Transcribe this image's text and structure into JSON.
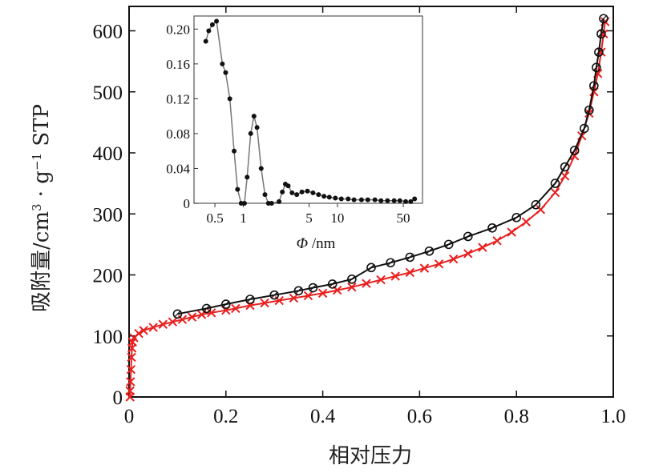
{
  "chart_data": [
    {
      "type": "line",
      "title": "",
      "xlabel": "相对压力",
      "ylabel": "吸附量/cm³·g⁻¹ STP",
      "ylabel_parts": {
        "main": "吸附量/cm",
        "sup1": "3",
        "dot": " · g",
        "sup2": "−1",
        "tail": " STP"
      },
      "xlim": [
        0,
        1.0
      ],
      "ylim": [
        0,
        640
      ],
      "x_ticks": [
        0,
        0.2,
        0.4,
        0.6,
        0.8,
        1.0
      ],
      "x_tick_labels": [
        "0",
        "0.2",
        "0.4",
        "0.6",
        "0.8",
        "1.0"
      ],
      "y_ticks": [
        0,
        100,
        200,
        300,
        400,
        500,
        600
      ],
      "y_tick_labels": [
        "0",
        "100",
        "200",
        "300",
        "400",
        "500",
        "600"
      ],
      "grid": false,
      "series": [
        {
          "color": "#e8201f",
          "marker": "x",
          "points": [
            [
              0.002,
              0
            ],
            [
              0.002,
              10
            ],
            [
              0.003,
              25
            ],
            [
              0.004,
              45
            ],
            [
              0.005,
              65
            ],
            [
              0.006,
              80
            ],
            [
              0.007,
              90
            ],
            [
              0.01,
              97
            ],
            [
              0.02,
              104
            ],
            [
              0.03,
              109
            ],
            [
              0.05,
              114
            ],
            [
              0.07,
              119
            ],
            [
              0.09,
              123
            ],
            [
              0.11,
              127
            ],
            [
              0.13,
              131
            ],
            [
              0.15,
              135
            ],
            [
              0.17,
              138
            ],
            [
              0.2,
              142
            ],
            [
              0.22,
              145
            ],
            [
              0.25,
              150
            ],
            [
              0.28,
              154
            ],
            [
              0.31,
              158
            ],
            [
              0.34,
              162
            ],
            [
              0.37,
              166
            ],
            [
              0.4,
              170
            ],
            [
              0.43,
              175
            ],
            [
              0.46,
              180
            ],
            [
              0.49,
              186
            ],
            [
              0.52,
              192
            ],
            [
              0.55,
              198
            ],
            [
              0.58,
              204
            ],
            [
              0.61,
              211
            ],
            [
              0.64,
              218
            ],
            [
              0.67,
              226
            ],
            [
              0.7,
              235
            ],
            [
              0.73,
              245
            ],
            [
              0.76,
              256
            ],
            [
              0.79,
              270
            ],
            [
              0.82,
              287
            ],
            [
              0.85,
              307
            ],
            [
              0.88,
              335
            ],
            [
              0.9,
              362
            ],
            [
              0.92,
              395
            ],
            [
              0.935,
              428
            ],
            [
              0.95,
              465
            ],
            [
              0.96,
              500
            ],
            [
              0.968,
              530
            ],
            [
              0.975,
              565
            ],
            [
              0.98,
              595
            ],
            [
              0.983,
              615
            ]
          ]
        },
        {
          "color": "#111111",
          "marker": "o",
          "points": [
            [
              0.1,
              136
            ],
            [
              0.16,
              145
            ],
            [
              0.2,
              152
            ],
            [
              0.25,
              160
            ],
            [
              0.3,
              167
            ],
            [
              0.35,
              174
            ],
            [
              0.38,
              179
            ],
            [
              0.42,
              185
            ],
            [
              0.46,
              193
            ],
            [
              0.5,
              212
            ],
            [
              0.54,
              220
            ],
            [
              0.58,
              229
            ],
            [
              0.62,
              239
            ],
            [
              0.66,
              250
            ],
            [
              0.7,
              263
            ],
            [
              0.75,
              277
            ],
            [
              0.8,
              294
            ],
            [
              0.84,
              315
            ],
            [
              0.88,
              350
            ],
            [
              0.9,
              377
            ],
            [
              0.92,
              404
            ],
            [
              0.94,
              440
            ],
            [
              0.95,
              470
            ],
            [
              0.96,
              510
            ],
            [
              0.965,
              540
            ],
            [
              0.97,
              565
            ],
            [
              0.975,
              595
            ],
            [
              0.98,
              620
            ]
          ]
        }
      ]
    },
    {
      "type": "line",
      "title": "",
      "xlabel": "Φ /nm",
      "xlabel_parts": {
        "symbol": "Φ",
        "unit": " /nm"
      },
      "ylabel": "",
      "x_scale": "log",
      "xlim": [
        0.3,
        80
      ],
      "ylim": [
        0,
        0.215
      ],
      "x_ticks": [
        0.5,
        1,
        5,
        10,
        50
      ],
      "x_tick_labels": [
        "0.5",
        "1",
        "5",
        "10",
        "50"
      ],
      "y_ticks": [
        0,
        0.04,
        0.08,
        0.12,
        0.16,
        0.2
      ],
      "y_tick_labels": [
        "0",
        "0.04",
        "0.08",
        "0.12",
        "0.16",
        "0.20"
      ],
      "grid": false,
      "series": [
        {
          "color": "#111111",
          "marker": "dot",
          "points": [
            [
              0.4,
              0.186
            ],
            [
              0.43,
              0.198
            ],
            [
              0.47,
              0.205
            ],
            [
              0.52,
              0.209
            ],
            [
              0.6,
              0.16
            ],
            [
              0.65,
              0.15
            ],
            [
              0.72,
              0.12
            ],
            [
              0.8,
              0.06
            ],
            [
              0.87,
              0.016
            ],
            [
              0.95,
              0.0
            ],
            [
              1.03,
              0.0
            ],
            [
              1.1,
              0.03
            ],
            [
              1.2,
              0.08
            ],
            [
              1.3,
              0.1
            ],
            [
              1.4,
              0.087
            ],
            [
              1.55,
              0.04
            ],
            [
              1.7,
              0.01
            ],
            [
              1.85,
              0.0
            ],
            [
              2.0,
              0.0
            ],
            [
              2.4,
              0.002
            ],
            [
              2.6,
              0.013
            ],
            [
              2.8,
              0.022
            ],
            [
              3.0,
              0.02
            ],
            [
              3.3,
              0.012
            ],
            [
              3.7,
              0.01
            ],
            [
              4.2,
              0.013
            ],
            [
              4.8,
              0.014
            ],
            [
              5.5,
              0.012
            ],
            [
              6.3,
              0.01
            ],
            [
              7.2,
              0.008
            ],
            [
              8.2,
              0.007
            ],
            [
              9.5,
              0.006
            ],
            [
              11,
              0.005
            ],
            [
              13,
              0.005
            ],
            [
              15,
              0.004
            ],
            [
              18,
              0.004
            ],
            [
              21,
              0.004
            ],
            [
              25,
              0.004
            ],
            [
              29,
              0.003
            ],
            [
              34,
              0.003
            ],
            [
              40,
              0.003
            ],
            [
              46,
              0.003
            ],
            [
              53,
              0.002
            ],
            [
              60,
              0.002
            ],
            [
              66,
              0.005
            ]
          ]
        }
      ]
    }
  ]
}
